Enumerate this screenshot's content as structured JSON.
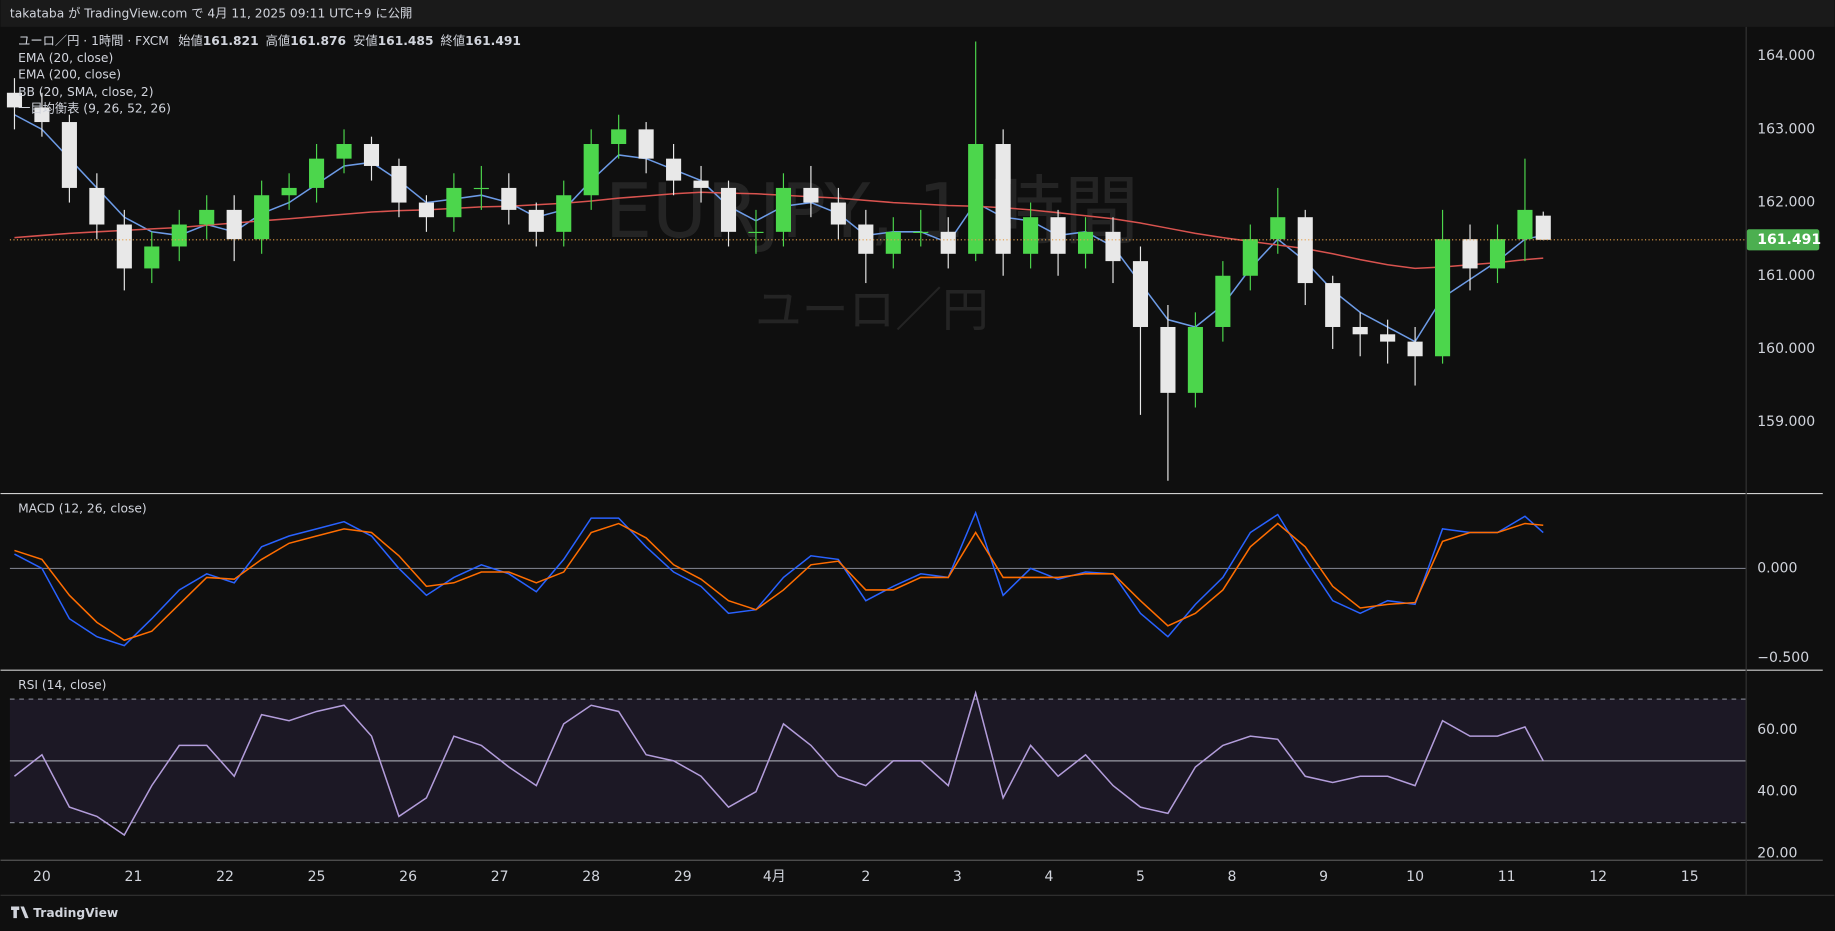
{
  "header": {
    "publish": "takataba が TradingView.com で 4月 11, 2025 09:11 UTC+9 に公開"
  },
  "footer": "TradingView",
  "chart_data": {
    "type": "candlestick",
    "symbol": "ユーロ／円 · 1時間 · FXCM",
    "ohlc_labels": [
      "始値",
      "高値",
      "安値",
      "終値"
    ],
    "ohlc_values": [
      161.821,
      161.876,
      161.485,
      161.491
    ],
    "watermark": "EURJPY, 1 時間",
    "watermark_sub": "ユーロ／円",
    "indicator_labels": [
      "BB (20, SMA, close, 2)",
      "一目均衡表 (9, 26, 52, 26)"
    ],
    "up_color": "#4cd64c",
    "down_color": "#e8e8e8",
    "last_price_color": "#4caf50",
    "xlim": [
      -0.35,
      18.61
    ],
    "xticks": [
      {
        "value": 0,
        "label": "20"
      },
      {
        "value": 1,
        "label": "21"
      },
      {
        "value": 2,
        "label": "22"
      },
      {
        "value": 3,
        "label": "25"
      },
      {
        "value": 4,
        "label": "26"
      },
      {
        "value": 5,
        "label": "27"
      },
      {
        "value": 6,
        "label": "28"
      },
      {
        "value": 7,
        "label": "29"
      },
      {
        "value": 8,
        "label": "4月"
      },
      {
        "value": 9,
        "label": "2"
      },
      {
        "value": 10,
        "label": "3"
      },
      {
        "value": 11,
        "label": "4"
      },
      {
        "value": 12,
        "label": "5"
      },
      {
        "value": 13,
        "label": "8"
      },
      {
        "value": 14,
        "label": "9"
      },
      {
        "value": 15,
        "label": "10"
      },
      {
        "value": 16,
        "label": "11"
      },
      {
        "value": 17,
        "label": "12"
      },
      {
        "value": 18,
        "label": "15"
      }
    ],
    "x": [
      -0.3,
      0,
      0.3,
      0.6,
      0.9,
      1.2,
      1.5,
      1.8,
      2.1,
      2.4,
      2.7,
      3,
      3.3,
      3.6,
      3.9,
      4.2,
      4.5,
      4.8,
      5.1,
      5.4,
      5.7,
      6,
      6.3,
      6.6,
      6.9,
      7.2,
      7.5,
      7.8,
      8.1,
      8.4,
      8.7,
      9,
      9.3,
      9.6,
      9.9,
      10.2,
      10.5,
      10.8,
      11.1,
      11.4,
      11.7,
      12,
      12.3,
      12.6,
      12.9,
      13.2,
      13.5,
      13.8,
      14.1,
      14.4,
      14.7,
      15,
      15.3,
      15.6,
      15.9,
      16.2,
      16.4
    ],
    "open": [
      163.5,
      163.3,
      163.1,
      162.2,
      161.7,
      161.1,
      161.4,
      161.7,
      161.9,
      161.5,
      162.1,
      162.2,
      162.6,
      162.8,
      162.5,
      162.0,
      161.8,
      162.2,
      162.2,
      161.9,
      161.6,
      162.1,
      162.8,
      163.0,
      162.6,
      162.3,
      162.2,
      161.6,
      161.6,
      162.2,
      162.0,
      161.7,
      161.3,
      161.6,
      161.6,
      161.3,
      162.8,
      161.3,
      161.8,
      161.3,
      161.6,
      161.2,
      160.3,
      159.4,
      160.3,
      161.0,
      161.5,
      161.8,
      160.9,
      160.3,
      160.2,
      160.1,
      159.9,
      161.5,
      161.1,
      161.5,
      161.821
    ],
    "high": [
      163.7,
      163.5,
      163.2,
      162.4,
      161.9,
      161.6,
      161.9,
      162.1,
      162.1,
      162.3,
      162.4,
      162.8,
      163.0,
      162.9,
      162.6,
      162.1,
      162.4,
      162.5,
      162.4,
      162.0,
      162.3,
      163.0,
      163.2,
      163.1,
      162.8,
      162.5,
      162.3,
      161.9,
      162.4,
      162.5,
      162.2,
      161.9,
      161.8,
      161.9,
      161.8,
      164.2,
      163.0,
      162.0,
      161.9,
      161.8,
      161.8,
      161.4,
      160.6,
      160.5,
      161.2,
      161.7,
      162.2,
      161.9,
      161.0,
      160.5,
      160.4,
      160.3,
      161.9,
      161.7,
      161.7,
      162.6,
      161.876
    ],
    "low": [
      163.0,
      162.9,
      162.0,
      161.5,
      160.8,
      160.9,
      161.2,
      161.5,
      161.2,
      161.3,
      161.9,
      162.0,
      162.4,
      162.3,
      161.8,
      161.6,
      161.6,
      161.9,
      161.7,
      161.4,
      161.4,
      161.9,
      162.6,
      162.4,
      162.1,
      162.0,
      161.4,
      161.3,
      161.4,
      161.8,
      161.5,
      160.9,
      161.1,
      161.4,
      161.1,
      161.2,
      161.0,
      161.1,
      161.0,
      161.1,
      160.9,
      159.1,
      158.2,
      159.2,
      160.1,
      160.8,
      161.3,
      160.6,
      160.0,
      159.9,
      159.8,
      159.5,
      159.8,
      160.8,
      160.9,
      161.2,
      161.485
    ],
    "close": [
      163.3,
      163.1,
      162.2,
      161.7,
      161.1,
      161.4,
      161.7,
      161.9,
      161.5,
      162.1,
      162.2,
      162.6,
      162.8,
      162.5,
      162.0,
      161.8,
      162.2,
      162.2,
      161.9,
      161.6,
      162.1,
      162.8,
      163.0,
      162.6,
      162.3,
      162.2,
      161.6,
      161.6,
      162.2,
      162.0,
      161.7,
      161.3,
      161.6,
      161.6,
      161.3,
      162.8,
      161.3,
      161.8,
      161.3,
      161.6,
      161.2,
      160.3,
      159.4,
      160.3,
      161.0,
      161.5,
      161.8,
      160.9,
      160.3,
      160.2,
      160.1,
      159.9,
      161.5,
      161.1,
      161.5,
      161.9,
      161.491
    ],
    "ylim": [
      158.04,
      164.4
    ],
    "yticks": [
      {
        "value": 159,
        "label": "159.000"
      },
      {
        "value": 160,
        "label": "160.000"
      },
      {
        "value": 161,
        "label": "161.000"
      },
      {
        "value": 162,
        "label": "162.000"
      },
      {
        "value": 163,
        "label": "163.000"
      },
      {
        "value": 164,
        "label": "164.000"
      }
    ],
    "overlays": [
      {
        "name": "EMA (20, close)",
        "color": "#6d9be6",
        "values": [
          163.2,
          163.0,
          162.6,
          162.2,
          161.8,
          161.6,
          161.55,
          161.7,
          161.6,
          161.85,
          162.0,
          162.25,
          162.5,
          162.55,
          162.3,
          162.0,
          162.05,
          162.1,
          162.0,
          161.8,
          161.9,
          162.3,
          162.65,
          162.6,
          162.45,
          162.3,
          161.95,
          161.75,
          161.95,
          162.0,
          161.85,
          161.55,
          161.6,
          161.6,
          161.45,
          162.0,
          161.8,
          161.75,
          161.55,
          161.6,
          161.4,
          160.9,
          160.4,
          160.3,
          160.6,
          161.1,
          161.5,
          161.2,
          160.8,
          160.5,
          160.3,
          160.1,
          160.7,
          160.95,
          161.2,
          161.5,
          161.55
        ]
      },
      {
        "name": "EMA (200, close)",
        "color": "#d9534f",
        "values": [
          161.52,
          161.55,
          161.58,
          161.6,
          161.62,
          161.64,
          161.66,
          161.69,
          161.72,
          161.75,
          161.78,
          161.81,
          161.84,
          161.87,
          161.89,
          161.9,
          161.92,
          161.94,
          161.95,
          161.97,
          161.99,
          162.02,
          162.06,
          162.09,
          162.12,
          162.14,
          162.13,
          162.12,
          162.1,
          162.08,
          162.06,
          162.03,
          162.0,
          161.98,
          161.96,
          161.95,
          161.93,
          161.9,
          161.86,
          161.82,
          161.78,
          161.72,
          161.65,
          161.58,
          161.52,
          161.47,
          161.42,
          161.37,
          161.3,
          161.22,
          161.15,
          161.1,
          161.12,
          161.15,
          161.18,
          161.22,
          161.24
        ]
      }
    ],
    "macd": {
      "name": "MACD (12, 26, close)",
      "ylim": [
        -0.56,
        0.41
      ],
      "baseline": 0,
      "yticks": [
        {
          "value": 0,
          "label": "0.000"
        },
        {
          "value": -0.5,
          "label": "−0.500"
        }
      ],
      "series": [
        {
          "color": "#2962ff",
          "values": [
            0.08,
            0.0,
            -0.28,
            -0.38,
            -0.43,
            -0.28,
            -0.12,
            -0.03,
            -0.08,
            0.12,
            0.18,
            0.22,
            0.26,
            0.18,
            0.0,
            -0.15,
            -0.05,
            0.02,
            -0.03,
            -0.13,
            0.05,
            0.28,
            0.28,
            0.12,
            -0.02,
            -0.1,
            -0.25,
            -0.23,
            -0.05,
            0.07,
            0.05,
            -0.18,
            -0.1,
            -0.03,
            -0.05,
            0.31,
            -0.15,
            0.0,
            -0.06,
            -0.02,
            -0.03,
            -0.25,
            -0.38,
            -0.2,
            -0.05,
            0.2,
            0.3,
            0.05,
            -0.18,
            -0.25,
            -0.18,
            -0.2,
            0.22,
            0.2,
            0.2,
            0.29,
            0.2
          ]
        },
        {
          "color": "#ff6d00",
          "values": [
            0.1,
            0.05,
            -0.15,
            -0.3,
            -0.4,
            -0.35,
            -0.2,
            -0.05,
            -0.06,
            0.05,
            0.14,
            0.18,
            0.22,
            0.2,
            0.07,
            -0.1,
            -0.08,
            -0.02,
            -0.02,
            -0.08,
            -0.02,
            0.2,
            0.25,
            0.17,
            0.02,
            -0.06,
            -0.18,
            -0.23,
            -0.12,
            0.02,
            0.04,
            -0.12,
            -0.12,
            -0.05,
            -0.05,
            0.2,
            -0.05,
            -0.05,
            -0.05,
            -0.03,
            -0.03,
            -0.18,
            -0.32,
            -0.25,
            -0.12,
            0.12,
            0.25,
            0.12,
            -0.1,
            -0.22,
            -0.2,
            -0.19,
            0.15,
            0.2,
            0.2,
            0.25,
            0.24
          ]
        }
      ]
    },
    "rsi": {
      "name": "RSI (14, close)",
      "ylim": [
        18,
        79
      ],
      "bands": [
        30,
        70
      ],
      "midline": 50,
      "color": "#b39ddb",
      "yticks": [
        {
          "value": 20,
          "label": "20.00"
        },
        {
          "value": 40,
          "label": "40.00"
        },
        {
          "value": 60,
          "label": "60.00"
        }
      ],
      "values": [
        45,
        52,
        35,
        32,
        26,
        42,
        55,
        55,
        45,
        65,
        63,
        66,
        68,
        58,
        32,
        38,
        58,
        55,
        48,
        42,
        62,
        68,
        66,
        52,
        50,
        45,
        35,
        40,
        62,
        55,
        45,
        42,
        50,
        50,
        42,
        72,
        38,
        55,
        45,
        52,
        42,
        35,
        33,
        48,
        55,
        58,
        57,
        45,
        43,
        45,
        45,
        42,
        63,
        58,
        58,
        61,
        50
      ]
    }
  }
}
